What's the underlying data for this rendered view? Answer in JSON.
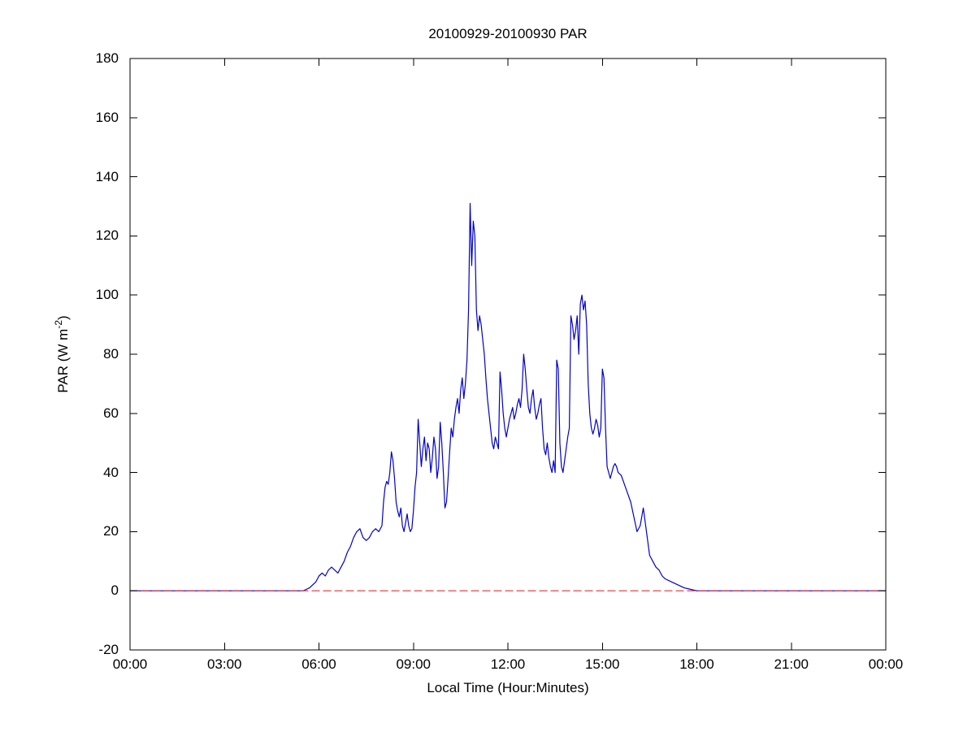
{
  "figure": {
    "title": "20100929-20100930 PAR",
    "xlabel": "Local Time (Hour:Minutes)",
    "ylabel_parts": {
      "main": "PAR (W m",
      "sup": "-2",
      "suffix": ")"
    }
  },
  "chart_data": {
    "type": "line",
    "title": "20100929-20100930 PAR",
    "xlabel": "Local Time (Hour:Minutes)",
    "ylabel": "PAR (W m^-2)",
    "xlim": [
      0,
      24
    ],
    "ylim": [
      -20,
      180
    ],
    "grid": false,
    "legend": null,
    "xtick_hours": [
      0,
      3,
      6,
      9,
      12,
      15,
      18,
      21,
      24
    ],
    "xtick_labels": [
      "00:00",
      "03:00",
      "06:00",
      "09:00",
      "12:00",
      "15:00",
      "18:00",
      "21:00",
      "00:00"
    ],
    "ytick_values": [
      -20,
      0,
      20,
      40,
      60,
      80,
      100,
      120,
      140,
      160,
      180
    ],
    "ytick_labels": [
      "-20",
      "0",
      "20",
      "40",
      "60",
      "80",
      "100",
      "120",
      "140",
      "160",
      "180"
    ],
    "series": [
      {
        "name": "PAR",
        "color": "#0000CC",
        "style": "solid",
        "x": [
          0,
          1,
          2,
          3,
          4,
          5,
          5.5,
          5.6,
          5.7,
          5.8,
          5.9,
          6.0,
          6.1,
          6.2,
          6.3,
          6.4,
          6.5,
          6.6,
          6.7,
          6.8,
          6.9,
          7.0,
          7.1,
          7.2,
          7.3,
          7.4,
          7.5,
          7.6,
          7.7,
          7.8,
          7.9,
          8.0,
          8.05,
          8.1,
          8.15,
          8.2,
          8.25,
          8.3,
          8.35,
          8.4,
          8.45,
          8.5,
          8.55,
          8.6,
          8.65,
          8.7,
          8.75,
          8.8,
          8.85,
          8.9,
          8.95,
          9.0,
          9.05,
          9.1,
          9.15,
          9.2,
          9.25,
          9.3,
          9.35,
          9.4,
          9.45,
          9.5,
          9.55,
          9.6,
          9.65,
          9.7,
          9.75,
          9.8,
          9.85,
          9.9,
          9.95,
          10.0,
          10.05,
          10.1,
          10.15,
          10.2,
          10.25,
          10.3,
          10.35,
          10.4,
          10.45,
          10.5,
          10.55,
          10.6,
          10.65,
          10.7,
          10.75,
          10.8,
          10.85,
          10.9,
          10.95,
          11.0,
          11.05,
          11.1,
          11.15,
          11.2,
          11.25,
          11.3,
          11.35,
          11.4,
          11.45,
          11.5,
          11.55,
          11.6,
          11.65,
          11.7,
          11.75,
          11.8,
          11.85,
          11.9,
          11.95,
          12.0,
          12.05,
          12.1,
          12.15,
          12.2,
          12.25,
          12.3,
          12.35,
          12.4,
          12.45,
          12.5,
          12.55,
          12.6,
          12.65,
          12.7,
          12.75,
          12.8,
          12.85,
          12.9,
          12.95,
          13.0,
          13.05,
          13.1,
          13.15,
          13.2,
          13.25,
          13.3,
          13.35,
          13.4,
          13.45,
          13.5,
          13.55,
          13.6,
          13.65,
          13.7,
          13.75,
          13.8,
          13.85,
          13.9,
          13.95,
          14.0,
          14.05,
          14.1,
          14.15,
          14.2,
          14.25,
          14.3,
          14.35,
          14.4,
          14.45,
          14.5,
          14.55,
          14.6,
          14.65,
          14.7,
          14.75,
          14.8,
          14.85,
          14.9,
          14.95,
          15.0,
          15.05,
          15.1,
          15.15,
          15.2,
          15.25,
          15.3,
          15.35,
          15.4,
          15.45,
          15.5,
          15.6,
          15.7,
          15.8,
          15.9,
          16.0,
          16.1,
          16.2,
          16.3,
          16.4,
          16.5,
          16.6,
          16.7,
          16.8,
          16.9,
          17.0,
          17.2,
          17.4,
          17.6,
          17.8,
          18.0,
          19,
          20,
          21,
          22,
          23,
          24
        ],
        "y": [
          0,
          0,
          0,
          0,
          0,
          0,
          0,
          0.5,
          1,
          2,
          3,
          5,
          6,
          5,
          7,
          8,
          7,
          6,
          8,
          10,
          13,
          15,
          18,
          20,
          21,
          18,
          17,
          18,
          20,
          21,
          20,
          22,
          30,
          35,
          37,
          36,
          40,
          47,
          44,
          38,
          30,
          27,
          25,
          28,
          22,
          20,
          23,
          26,
          22,
          20,
          21,
          27,
          35,
          40,
          58,
          50,
          42,
          48,
          52,
          44,
          50,
          48,
          40,
          45,
          52,
          48,
          38,
          42,
          57,
          50,
          40,
          28,
          30,
          38,
          47,
          55,
          52,
          58,
          62,
          65,
          60,
          68,
          72,
          65,
          70,
          78,
          95,
          131,
          110,
          125,
          120,
          95,
          88,
          93,
          90,
          85,
          80,
          72,
          65,
          60,
          55,
          50,
          48,
          52,
          50,
          48,
          74,
          68,
          60,
          55,
          52,
          55,
          58,
          60,
          62,
          58,
          60,
          63,
          65,
          62,
          68,
          80,
          75,
          68,
          62,
          60,
          65,
          68,
          62,
          58,
          60,
          63,
          65,
          55,
          48,
          46,
          50,
          45,
          42,
          40,
          44,
          40,
          78,
          75,
          50,
          42,
          40,
          44,
          48,
          52,
          55,
          93,
          90,
          85,
          88,
          93,
          80,
          97,
          100,
          95,
          98,
          90,
          70,
          60,
          55,
          53,
          55,
          58,
          56,
          52,
          55,
          75,
          72,
          55,
          42,
          40,
          38,
          40,
          42,
          43,
          42,
          40,
          39,
          36,
          33,
          30,
          25,
          20,
          22,
          28,
          20,
          12,
          10,
          8,
          7,
          5,
          4,
          3,
          2,
          1,
          0.5,
          0,
          0,
          0,
          0,
          0,
          0,
          0
        ]
      },
      {
        "name": "zero-reference",
        "color": "#E03030",
        "style": "dashed",
        "x": [
          0,
          24
        ],
        "y": [
          0,
          0
        ]
      }
    ]
  }
}
